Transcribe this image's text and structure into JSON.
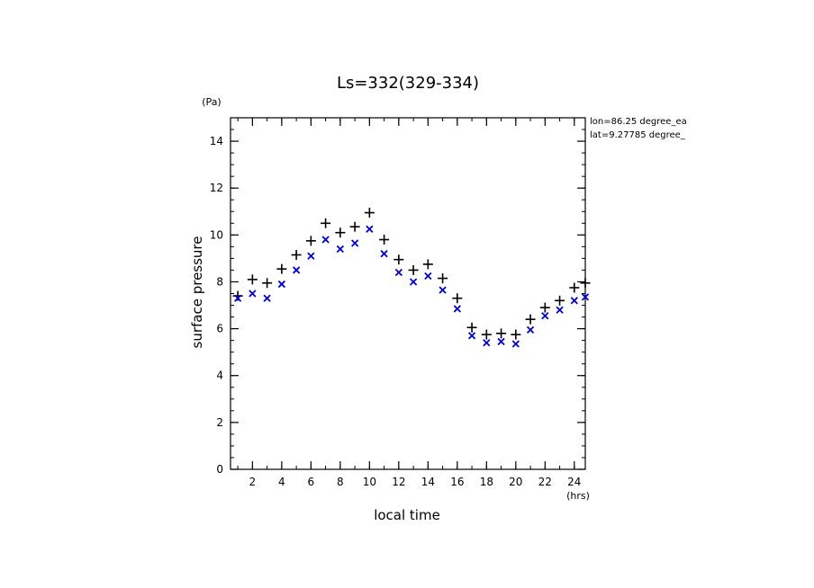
{
  "chart_data": {
    "type": "scatter",
    "title": "Ls=332(329-334)",
    "xlabel": "local time",
    "ylabel": "surface pressure",
    "x_unit": "(hrs)",
    "y_unit": "(Pa)",
    "xlim": [
      0.5,
      24.75
    ],
    "ylim": [
      0,
      15
    ],
    "x_ticks": [
      2,
      4,
      6,
      8,
      10,
      12,
      14,
      16,
      18,
      20,
      22,
      24
    ],
    "y_ticks": [
      0,
      2,
      4,
      6,
      8,
      10,
      12,
      14
    ],
    "annotations": [
      "lon=86.25 degree_ea",
      "lat=9.27785 degree_"
    ],
    "series": [
      {
        "marker": "plus",
        "color": "#000000",
        "x": [
          1,
          2,
          3,
          4,
          5,
          6,
          7,
          8,
          9,
          10,
          11,
          12,
          13,
          14,
          15,
          16,
          17,
          18,
          19,
          20,
          21,
          22,
          23,
          24,
          24.75
        ],
        "values": [
          7.4,
          8.1,
          7.95,
          8.55,
          9.15,
          9.75,
          10.5,
          10.1,
          10.35,
          10.95,
          9.8,
          8.95,
          8.5,
          8.75,
          8.15,
          7.3,
          6.05,
          5.75,
          5.8,
          5.75,
          6.4,
          6.9,
          7.2,
          7.75,
          7.95
        ]
      },
      {
        "marker": "x",
        "color": "#0000cc",
        "x": [
          1,
          2,
          3,
          4,
          5,
          6,
          7,
          8,
          9,
          10,
          11,
          12,
          13,
          14,
          15,
          16,
          17,
          18,
          19,
          20,
          21,
          22,
          23,
          24,
          24.75
        ],
        "values": [
          7.3,
          7.5,
          7.3,
          7.9,
          8.5,
          9.1,
          9.8,
          9.4,
          9.65,
          10.25,
          9.2,
          8.4,
          8.0,
          8.25,
          7.65,
          6.85,
          5.7,
          5.4,
          5.45,
          5.35,
          5.95,
          6.55,
          6.8,
          7.2,
          7.35
        ]
      }
    ]
  }
}
